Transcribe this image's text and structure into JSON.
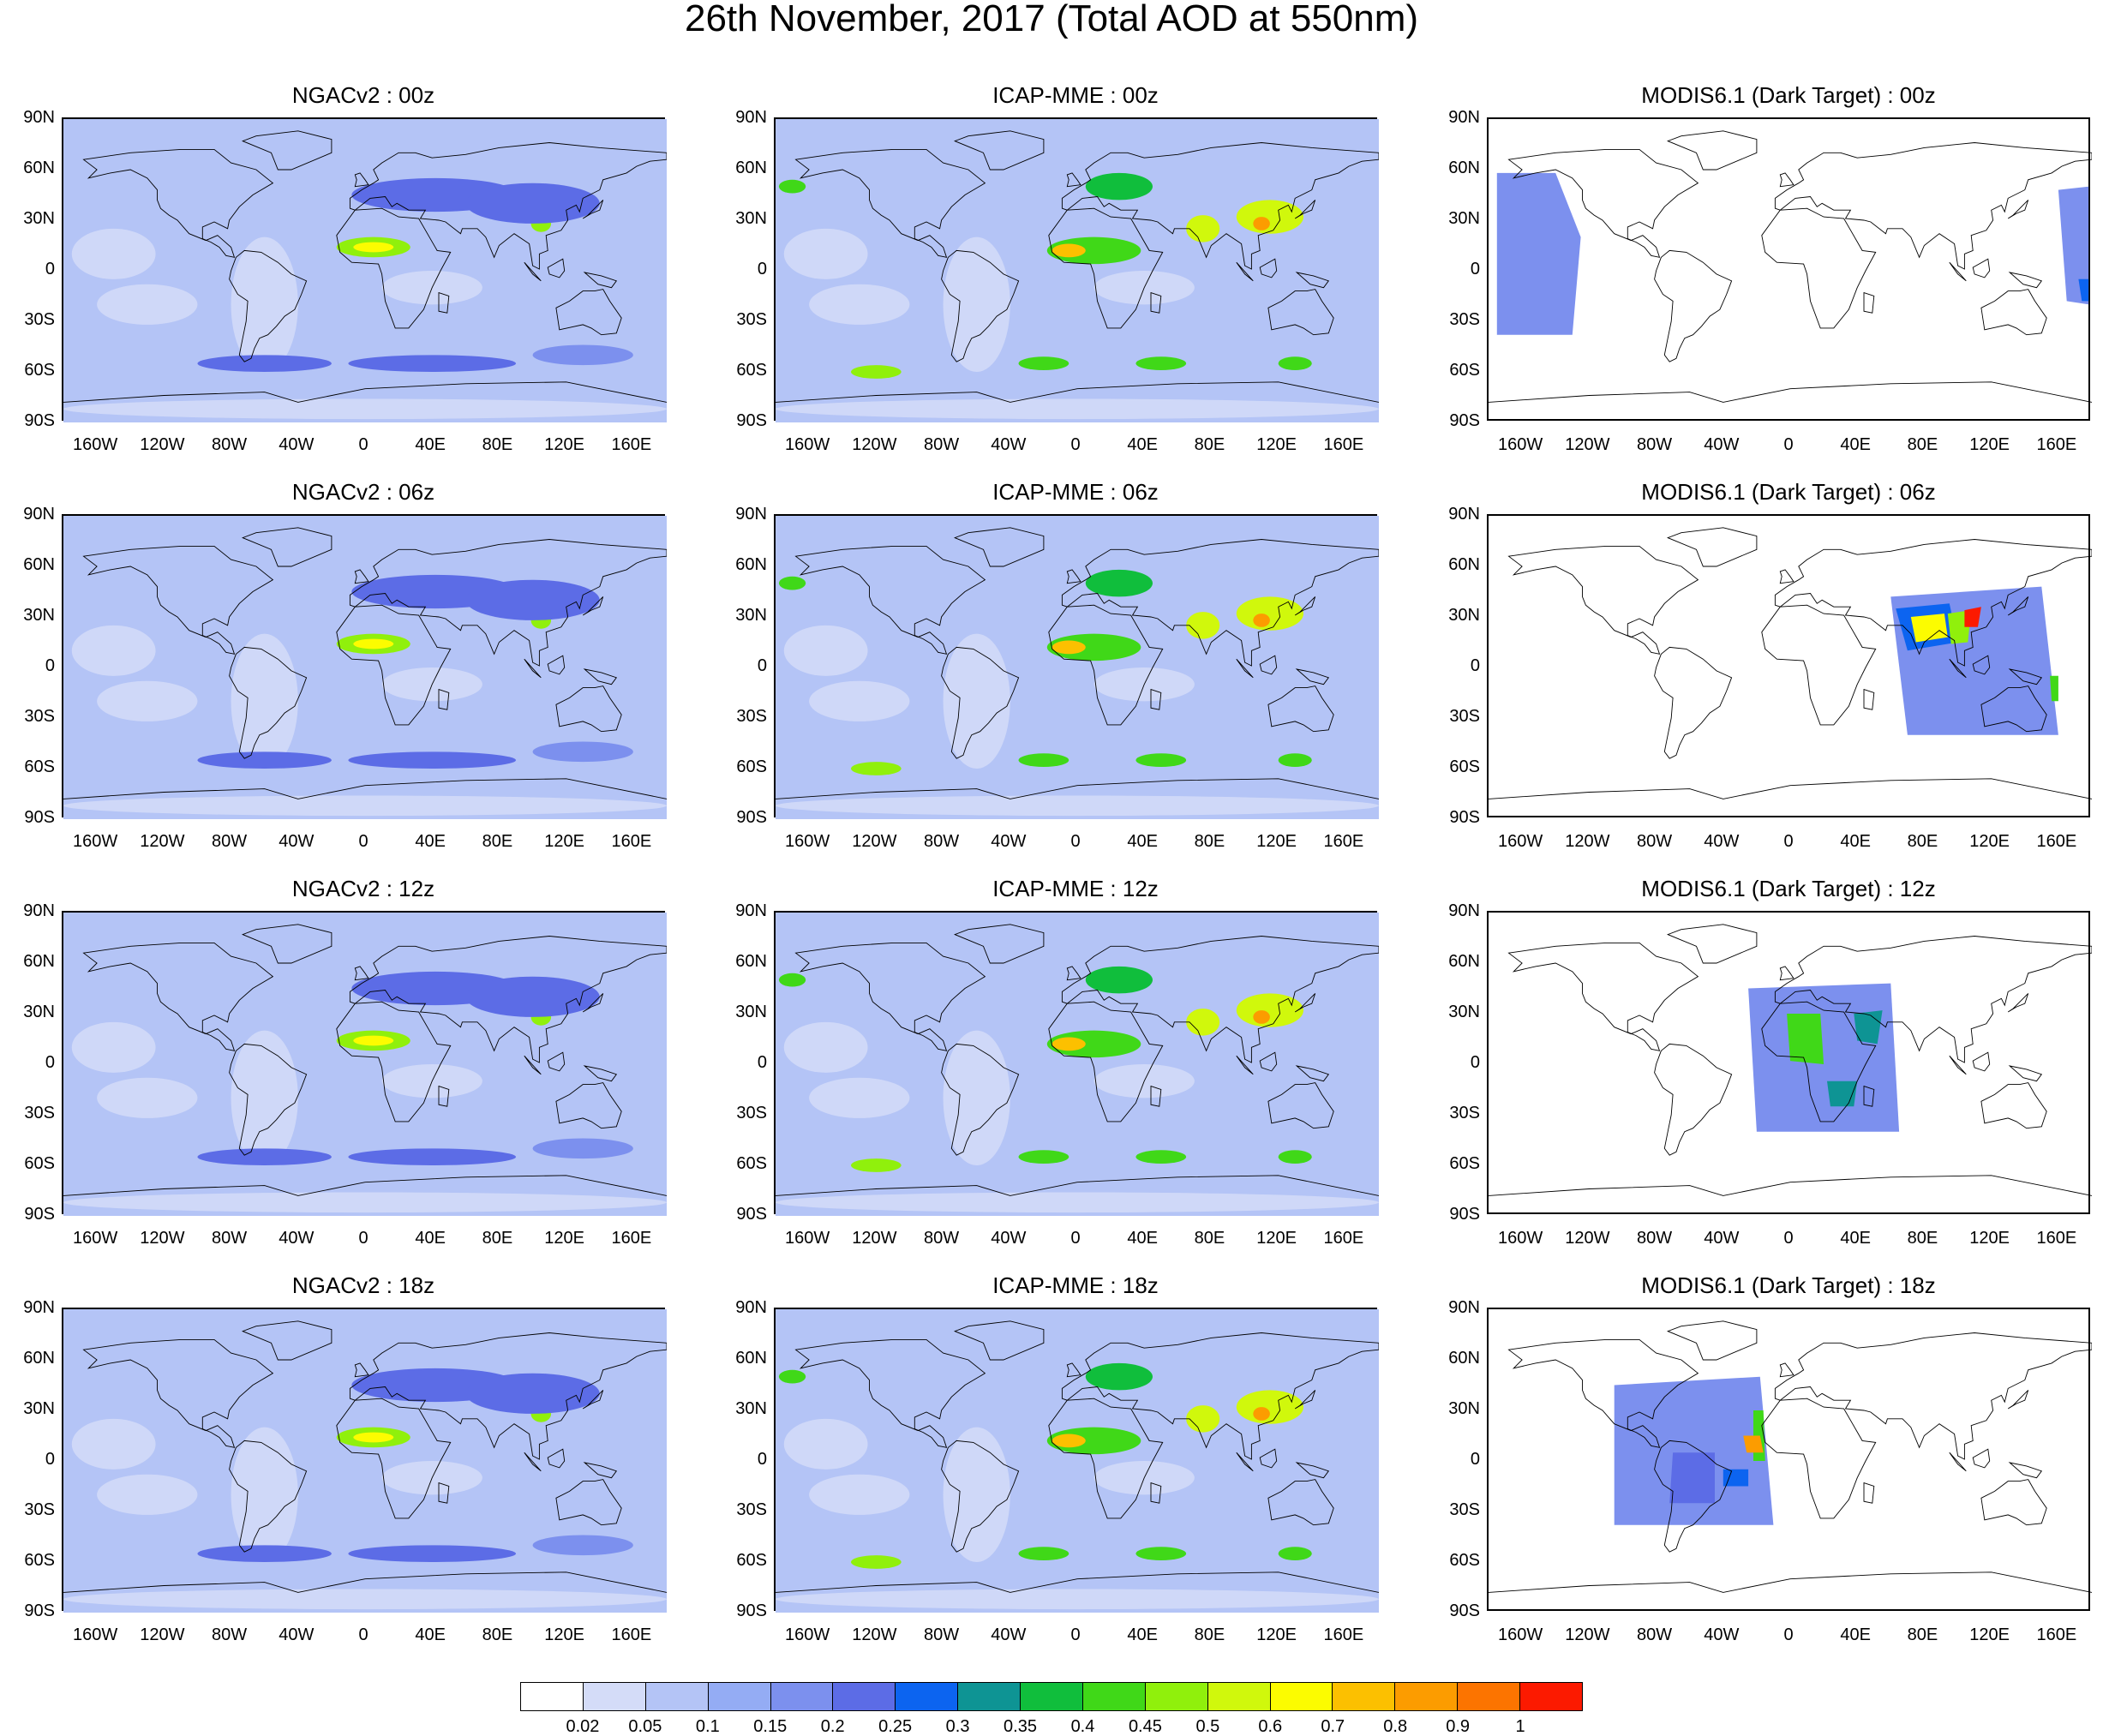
{
  "title": "26th November, 2017 (Total AOD at 550nm)",
  "map_axes": {
    "lat_ticks": [
      "90N",
      "60N",
      "30N",
      "0",
      "30S",
      "60S",
      "90S"
    ],
    "lon_ticks": [
      "160W",
      "120W",
      "80W",
      "40W",
      "0",
      "40E",
      "80E",
      "120E",
      "160E"
    ],
    "lon_range": [
      -180,
      180
    ],
    "lat_range": [
      -90,
      90
    ]
  },
  "panels": [
    {
      "title": "NGACv2 : 00z",
      "dataset": "NGACv2",
      "time": "00z",
      "coverage": "global"
    },
    {
      "title": "ICAP-MME : 00z",
      "dataset": "ICAP-MME",
      "time": "00z",
      "coverage": "global"
    },
    {
      "title": "MODIS6.1 (Dark Target) : 00z",
      "dataset": "MODIS6.1",
      "time": "00z",
      "coverage": "swath"
    },
    {
      "title": "NGACv2 : 06z",
      "dataset": "NGACv2",
      "time": "06z",
      "coverage": "global"
    },
    {
      "title": "ICAP-MME : 06z",
      "dataset": "ICAP-MME",
      "time": "06z",
      "coverage": "global"
    },
    {
      "title": "MODIS6.1 (Dark Target) : 06z",
      "dataset": "MODIS6.1",
      "time": "06z",
      "coverage": "swath"
    },
    {
      "title": "NGACv2 : 12z",
      "dataset": "NGACv2",
      "time": "12z",
      "coverage": "global"
    },
    {
      "title": "ICAP-MME : 12z",
      "dataset": "ICAP-MME",
      "time": "12z",
      "coverage": "global"
    },
    {
      "title": "MODIS6.1 (Dark Target) : 12z",
      "dataset": "MODIS6.1",
      "time": "12z",
      "coverage": "swath"
    },
    {
      "title": "NGACv2 : 18z",
      "dataset": "NGACv2",
      "time": "18z",
      "coverage": "global"
    },
    {
      "title": "ICAP-MME : 18z",
      "dataset": "ICAP-MME",
      "time": "18z",
      "coverage": "global"
    },
    {
      "title": "MODIS6.1 (Dark Target) : 18z",
      "dataset": "MODIS6.1",
      "time": "18z",
      "coverage": "swath"
    }
  ],
  "colorbar": {
    "labels": [
      "0.02",
      "0.05",
      "0.1",
      "0.15",
      "0.2",
      "0.25",
      "0.3",
      "0.35",
      "0.4",
      "0.45",
      "0.5",
      "0.6",
      "0.7",
      "0.8",
      "0.9",
      "1"
    ],
    "colors": [
      "#ffffff",
      "#d4dcf8",
      "#b4c4f6",
      "#94acf4",
      "#7c90ee",
      "#5c6ce6",
      "#0c64f0",
      "#0e9494",
      "#10be3c",
      "#40d818",
      "#90f00c",
      "#d0f80c",
      "#fcfc00",
      "#fcc000",
      "#fc9c00",
      "#fc7400",
      "#fc1a00"
    ]
  },
  "aod_features": {
    "NGACv2": [
      {
        "lon": 5,
        "lat": 14,
        "rx": 22,
        "ry": 6,
        "aod": 0.45
      },
      {
        "lon": 5,
        "lat": 14,
        "rx": 12,
        "ry": 3,
        "aod": 0.6
      },
      {
        "lon": 105,
        "lat": 28,
        "rx": 6,
        "ry": 5,
        "aod": 0.45
      },
      {
        "lon": 42,
        "lat": 45,
        "rx": 50,
        "ry": 10,
        "aod": 0.2
      },
      {
        "lon": 100,
        "lat": 40,
        "rx": 40,
        "ry": 12,
        "aod": 0.2
      },
      {
        "lon": -60,
        "lat": -55,
        "rx": 40,
        "ry": 5,
        "aod": 0.2
      },
      {
        "lon": 40,
        "lat": -55,
        "rx": 50,
        "ry": 5,
        "aod": 0.2
      },
      {
        "lon": 130,
        "lat": -50,
        "rx": 30,
        "ry": 6,
        "aod": 0.15
      }
    ],
    "ICAP-MME": [
      {
        "lon": 10,
        "lat": 12,
        "rx": 28,
        "ry": 8,
        "aod": 0.4
      },
      {
        "lon": -5,
        "lat": 12,
        "rx": 10,
        "ry": 4,
        "aod": 0.7
      },
      {
        "lon": 75,
        "lat": 25,
        "rx": 10,
        "ry": 8,
        "aod": 0.5
      },
      {
        "lon": 115,
        "lat": 32,
        "rx": 20,
        "ry": 10,
        "aod": 0.5
      },
      {
        "lon": 110,
        "lat": 28,
        "rx": 5,
        "ry": 4,
        "aod": 0.8
      },
      {
        "lon": 25,
        "lat": 50,
        "rx": 20,
        "ry": 8,
        "aod": 0.35
      },
      {
        "lon": -120,
        "lat": -60,
        "rx": 15,
        "ry": 4,
        "aod": 0.45
      },
      {
        "lon": -20,
        "lat": -55,
        "rx": 15,
        "ry": 4,
        "aod": 0.4
      },
      {
        "lon": 50,
        "lat": -55,
        "rx": 15,
        "ry": 4,
        "aod": 0.4
      },
      {
        "lon": 130,
        "lat": -55,
        "rx": 10,
        "ry": 4,
        "aod": 0.4
      },
      {
        "lon": -170,
        "lat": 50,
        "rx": 8,
        "ry": 4,
        "aod": 0.4
      }
    ]
  },
  "modis_swaths": {
    "00z": [
      {
        "points": [
          [
            -175,
            58
          ],
          [
            -140,
            58
          ],
          [
            -125,
            20
          ],
          [
            -130,
            -38
          ],
          [
            -175,
            -38
          ]
        ],
        "aod": 0.15
      },
      {
        "points": [
          [
            160,
            48
          ],
          [
            178,
            50
          ],
          [
            178,
            -20
          ],
          [
            165,
            -18
          ]
        ],
        "aod": 0.15
      },
      {
        "points": [
          [
            172,
            -5
          ],
          [
            178,
            -5
          ],
          [
            178,
            -18
          ],
          [
            174,
            -18
          ]
        ],
        "aod": 0.25
      }
    ],
    "06z": [
      {
        "points": [
          [
            60,
            42
          ],
          [
            150,
            48
          ],
          [
            160,
            -40
          ],
          [
            70,
            -40
          ]
        ],
        "aod": 0.15
      },
      {
        "points": [
          [
            63,
            35
          ],
          [
            95,
            38
          ],
          [
            100,
            15
          ],
          [
            70,
            10
          ]
        ],
        "aod": 0.25
      },
      {
        "points": [
          [
            72,
            30
          ],
          [
            92,
            32
          ],
          [
            94,
            18
          ],
          [
            75,
            15
          ]
        ],
        "aod": 0.6
      },
      {
        "points": [
          [
            94,
            32
          ],
          [
            108,
            34
          ],
          [
            106,
            15
          ],
          [
            96,
            14
          ]
        ],
        "aod": 0.45
      },
      {
        "points": [
          [
            104,
            34
          ],
          [
            114,
            36
          ],
          [
            112,
            24
          ],
          [
            104,
            24
          ]
        ],
        "aod": 1.0
      },
      {
        "points": [
          [
            155,
            -5
          ],
          [
            160,
            -5
          ],
          [
            160,
            -20
          ],
          [
            156,
            -20
          ]
        ],
        "aod": 0.4
      }
    ],
    "12z": [
      {
        "points": [
          [
            -25,
            45
          ],
          [
            60,
            48
          ],
          [
            65,
            -40
          ],
          [
            -20,
            -40
          ]
        ],
        "aod": 0.15
      },
      {
        "points": [
          [
            -2,
            30
          ],
          [
            18,
            30
          ],
          [
            20,
            0
          ],
          [
            0,
            2
          ]
        ],
        "aod": 0.4
      },
      {
        "points": [
          [
            38,
            30
          ],
          [
            55,
            32
          ],
          [
            52,
            12
          ],
          [
            40,
            14
          ]
        ],
        "aod": 0.3
      },
      {
        "points": [
          [
            22,
            -10
          ],
          [
            40,
            -10
          ],
          [
            38,
            -25
          ],
          [
            24,
            -25
          ]
        ],
        "aod": 0.3
      }
    ],
    "18z": [
      {
        "points": [
          [
            -105,
            45
          ],
          [
            -18,
            50
          ],
          [
            -10,
            -38
          ],
          [
            -105,
            -38
          ]
        ],
        "aod": 0.15
      },
      {
        "points": [
          [
            -70,
            5
          ],
          [
            -45,
            5
          ],
          [
            -45,
            -25
          ],
          [
            -72,
            -25
          ]
        ],
        "aod": 0.2
      },
      {
        "points": [
          [
            -40,
            -5
          ],
          [
            -25,
            -5
          ],
          [
            -25,
            -15
          ],
          [
            -40,
            -15
          ]
        ],
        "aod": 0.25
      },
      {
        "points": [
          [
            -22,
            30
          ],
          [
            -16,
            30
          ],
          [
            -15,
            0
          ],
          [
            -22,
            0
          ]
        ],
        "aod": 0.4
      },
      {
        "points": [
          [
            -28,
            15
          ],
          [
            -18,
            15
          ],
          [
            -16,
            5
          ],
          [
            -26,
            5
          ]
        ],
        "aod": 0.8
      }
    ]
  }
}
